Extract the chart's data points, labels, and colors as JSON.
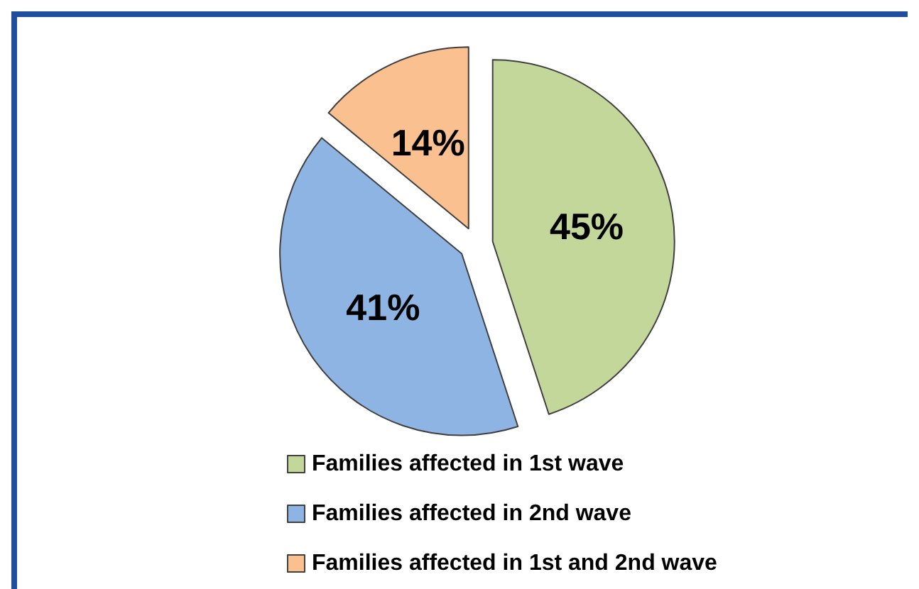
{
  "chart_data": {
    "type": "pie",
    "categories": [
      "Families affected in 1st wave",
      "Families affected in 2nd wave",
      "Families affected in 1st and 2nd wave"
    ],
    "values": [
      45,
      41,
      14
    ],
    "colors": [
      "#c4d79b",
      "#8eb4e3",
      "#fac090"
    ],
    "value_labels": [
      "45%",
      "41%",
      "14%"
    ],
    "legend": "bottom"
  }
}
